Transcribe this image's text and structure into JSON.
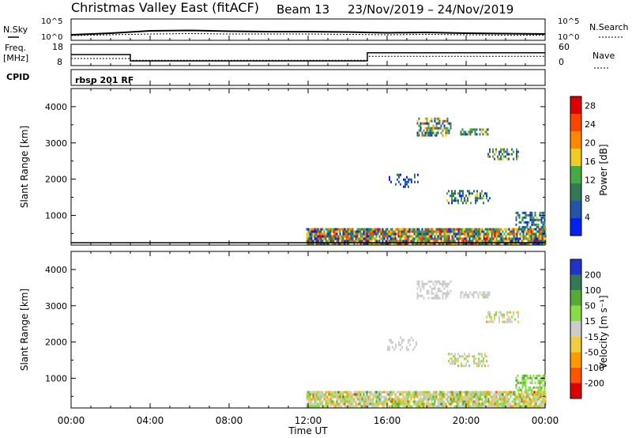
{
  "header": {
    "station": "Christmas Valley East (fitACF)",
    "beam": "Beam 13",
    "date_range": "23/Nov/2019 – 24/Nov/2019"
  },
  "panels": {
    "nsky_label": "N.Sky",
    "nsearch_label": "N.Search",
    "nsky_ticks": [
      "10^5",
      "10^0"
    ],
    "nsearch_ticks": [
      "10^5",
      "10^0"
    ],
    "freq_label_1": "Freq.",
    "freq_label_2": "[MHz]",
    "freq_ticks": [
      "18",
      "8"
    ],
    "nave_label": "Nave",
    "nave_ticks": [
      "60",
      "0"
    ],
    "cpid_label": "CPID",
    "cpid_value": "rbsp 201 RF"
  },
  "chart_data": [
    {
      "type": "line",
      "name": "Noise",
      "x": [
        0,
        2,
        4,
        6,
        8,
        10,
        12,
        14,
        16,
        18,
        20,
        22,
        24
      ],
      "series": [
        {
          "name": "N.Sky",
          "values": [
            0.8,
            1.2,
            1.8,
            1.9,
            1.7,
            1.6,
            1.6,
            1.5,
            1.3,
            1.4,
            1.2,
            1.1,
            1.0
          ]
        },
        {
          "name": "N.Search",
          "values": [
            0.6,
            0.8,
            1.0,
            1.1,
            1.0,
            1.0,
            1.0,
            0.9,
            0.8,
            0.9,
            0.8,
            0.7,
            0.7
          ]
        }
      ]
    },
    {
      "type": "line",
      "name": "Frequency / Nave",
      "series": [
        {
          "name": "Freq.",
          "x": [
            0,
            3,
            3,
            15,
            15,
            24
          ],
          "values": [
            13.2,
            13.2,
            10.2,
            10.2,
            14.0,
            14.0
          ]
        },
        {
          "name": "Nave",
          "x": [
            0,
            3,
            3,
            15,
            15,
            24
          ],
          "values": [
            20,
            20,
            15,
            15,
            26,
            26
          ]
        }
      ],
      "ylim_left": [
        8,
        18
      ],
      "ylim_right": [
        0,
        60
      ]
    },
    {
      "type": "heatmap",
      "name": "Power",
      "xlabel": "",
      "ylabel": "Slant Range [km]",
      "xlim": [
        0,
        24
      ],
      "ylim": [
        180,
        4500
      ],
      "yticks": [
        1000,
        2000,
        3000,
        4000
      ],
      "colorbar_label": "Power [dB]",
      "colorbar_ticks": [
        4,
        8,
        12,
        16,
        20,
        24,
        28
      ],
      "colorbar_range": [
        0,
        30
      ],
      "colors": [
        "#0022ee",
        "#2255aa",
        "#337755",
        "#44aa44",
        "#eecc22",
        "#ff8800",
        "#ff4400",
        "#dd0000"
      ],
      "scatter_regions": [
        {
          "t": [
            11.9,
            24
          ],
          "r": [
            200,
            650
          ],
          "density": 0.9,
          "value_mean": 14,
          "value_sd": 8
        },
        {
          "t": [
            17.5,
            19.2
          ],
          "r": [
            3200,
            3700
          ],
          "density": 0.55,
          "value_mean": 12,
          "value_sd": 6
        },
        {
          "t": [
            19.7,
            21.2
          ],
          "r": [
            3250,
            3400
          ],
          "density": 0.6,
          "value_mean": 10,
          "value_sd": 5
        },
        {
          "t": [
            21.0,
            22.6
          ],
          "r": [
            2550,
            2850
          ],
          "density": 0.5,
          "value_mean": 11,
          "value_sd": 5
        },
        {
          "t": [
            19.0,
            21.2
          ],
          "r": [
            1350,
            1700
          ],
          "density": 0.4,
          "value_mean": 9,
          "value_sd": 5
        },
        {
          "t": [
            16.0,
            17.6
          ],
          "r": [
            1800,
            2150
          ],
          "density": 0.25,
          "value_mean": 6,
          "value_sd": 3
        },
        {
          "t": [
            22.5,
            24
          ],
          "r": [
            700,
            1100
          ],
          "density": 0.5,
          "value_mean": 8,
          "value_sd": 4
        }
      ]
    },
    {
      "type": "heatmap",
      "name": "Velocity",
      "xlabel": "Time UT",
      "ylabel": "Slant Range [km]",
      "xlim": [
        0,
        24
      ],
      "ylim": [
        180,
        4500
      ],
      "xticks": [
        "00:00",
        "04:00",
        "08:00",
        "12:00",
        "16:00",
        "20:00",
        "00:00"
      ],
      "yticks": [
        1000,
        2000,
        3000,
        4000
      ],
      "colorbar_label": "Velocity [m s⁻¹]",
      "colorbar_ticks": [
        200,
        100,
        50,
        15,
        -15,
        -50,
        -100,
        -200
      ],
      "colorbar_range": [
        -250,
        250
      ],
      "colors": [
        "#2233cc",
        "#337755",
        "#55aa33",
        "#88dd44",
        "#cccccc",
        "#eecc44",
        "#ff9900",
        "#ff5500",
        "#dd0000"
      ],
      "scatter_regions": [
        {
          "t": [
            11.9,
            24
          ],
          "r": [
            200,
            650
          ],
          "density": 0.9,
          "value_mean": 0,
          "value_sd": 60
        },
        {
          "t": [
            17.5,
            19.2
          ],
          "r": [
            3200,
            3700
          ],
          "density": 0.55,
          "value_mean": 0,
          "value_sd": 10
        },
        {
          "t": [
            19.7,
            21.2
          ],
          "r": [
            3250,
            3400
          ],
          "density": 0.6,
          "value_mean": 0,
          "value_sd": 12
        },
        {
          "t": [
            21.0,
            22.6
          ],
          "r": [
            2550,
            2850
          ],
          "density": 0.5,
          "value_mean": 0,
          "value_sd": 40
        },
        {
          "t": [
            19.0,
            21.2
          ],
          "r": [
            1350,
            1700
          ],
          "density": 0.4,
          "value_mean": 0,
          "value_sd": 40
        },
        {
          "t": [
            16.0,
            17.6
          ],
          "r": [
            1800,
            2150
          ],
          "density": 0.25,
          "value_mean": 0,
          "value_sd": 8
        },
        {
          "t": [
            22.5,
            24
          ],
          "r": [
            700,
            1100
          ],
          "density": 0.5,
          "value_mean": 70,
          "value_sd": 20
        }
      ]
    }
  ]
}
